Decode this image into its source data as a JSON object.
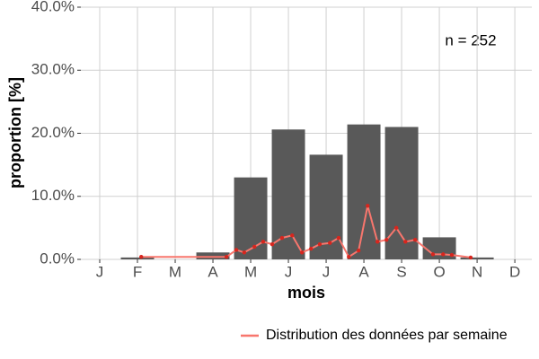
{
  "chart_data": {
    "type": "bar",
    "annotation": "n = 252",
    "ylabel": "proportion [%]",
    "xlabel": "mois",
    "grid": true,
    "xlim": [
      0.5,
      12.45
    ],
    "xticks": [
      {
        "value": 1,
        "label": "J"
      },
      {
        "value": 2,
        "label": "F"
      },
      {
        "value": 3,
        "label": "M"
      },
      {
        "value": 4,
        "label": "A"
      },
      {
        "value": 5,
        "label": "M"
      },
      {
        "value": 6,
        "label": "J"
      },
      {
        "value": 7,
        "label": "J"
      },
      {
        "value": 8,
        "label": "A"
      },
      {
        "value": 9,
        "label": "S"
      },
      {
        "value": 10,
        "label": "O"
      },
      {
        "value": 11,
        "label": "N"
      },
      {
        "value": 12,
        "label": "D"
      }
    ],
    "ylim": [
      0,
      40
    ],
    "yticks": [
      {
        "value": 0,
        "label": "0.0%"
      },
      {
        "value": 10,
        "label": "10.0%"
      },
      {
        "value": 20,
        "label": "20.0%"
      },
      {
        "value": 30,
        "label": "30.0%"
      },
      {
        "value": 40,
        "label": "40.0%"
      }
    ],
    "legend_position": "bottom-right",
    "series": [
      {
        "type": "bar",
        "color": "#595959",
        "x": [
          1,
          2,
          3,
          4,
          5,
          6,
          7,
          8,
          9,
          10,
          11,
          12
        ],
        "values": [
          0,
          0.3,
          0,
          1.1,
          13.0,
          20.6,
          16.6,
          21.4,
          21.0,
          3.5,
          0.3,
          0
        ]
      },
      {
        "type": "line",
        "name": "Distribution des données par semaine",
        "color": "#f8766d",
        "marker_color": "#d7261e",
        "x": [
          2.1,
          4.36,
          4.62,
          4.83,
          5.1,
          5.33,
          5.57,
          5.83,
          6.1,
          6.36,
          6.6,
          6.83,
          7.1,
          7.33,
          7.6,
          7.86,
          8.1,
          8.36,
          8.6,
          8.86,
          9.1,
          9.36,
          9.83,
          10.1,
          10.33,
          10.83
        ],
        "values": [
          0.4,
          0.4,
          1.5,
          1.1,
          2.0,
          2.8,
          2.4,
          3.4,
          3.8,
          1.1,
          1.7,
          2.4,
          2.6,
          3.4,
          0.4,
          1.4,
          8.5,
          2.8,
          3.1,
          5.0,
          2.8,
          3.1,
          0.8,
          0.8,
          0.7,
          0.3
        ]
      }
    ]
  }
}
